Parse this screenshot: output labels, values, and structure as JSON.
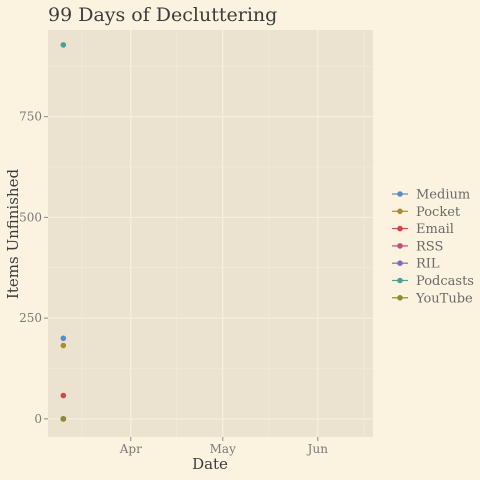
{
  "chart_data": {
    "type": "scatter",
    "title": "99 Days of Decluttering",
    "xlabel": "Date",
    "ylabel": "Items Unfinished",
    "x_range": [
      "2019-03-05",
      "2019-06-19"
    ],
    "ylim": [
      -45,
      965
    ],
    "x_ticks": [
      {
        "date": "2019-04-01",
        "label": "Apr"
      },
      {
        "date": "2019-05-01",
        "label": "May"
      },
      {
        "date": "2019-06-01",
        "label": "Jun"
      }
    ],
    "x_minor_ticks": [
      "2019-03-16",
      "2019-04-16",
      "2019-05-16",
      "2019-06-16"
    ],
    "y_ticks": [
      0,
      250,
      500,
      750
    ],
    "y_minor_ticks": [
      125,
      375,
      625,
      875
    ],
    "grid": true,
    "legend_position": "right",
    "series": [
      {
        "name": "Medium",
        "color": "#5b8bc7",
        "points": [
          {
            "x": "2019-03-10",
            "y": 200
          }
        ]
      },
      {
        "name": "Pocket",
        "color": "#a98c3a",
        "points": [
          {
            "x": "2019-03-10",
            "y": 182
          }
        ]
      },
      {
        "name": "Email",
        "color": "#cc4a4a",
        "points": [
          {
            "x": "2019-03-10",
            "y": 58
          }
        ]
      },
      {
        "name": "RSS",
        "color": "#c84a82",
        "points": [
          {
            "x": "2019-03-10",
            "y": 0
          }
        ]
      },
      {
        "name": "RIL",
        "color": "#7a6fc2",
        "points": [
          {
            "x": "2019-03-10",
            "y": 0
          }
        ]
      },
      {
        "name": "Podcasts",
        "color": "#4aa098",
        "points": [
          {
            "x": "2019-03-10",
            "y": 928
          }
        ]
      },
      {
        "name": "YouTube",
        "color": "#8f8a2a",
        "points": [
          {
            "x": "2019-03-10",
            "y": 0
          }
        ]
      }
    ]
  }
}
